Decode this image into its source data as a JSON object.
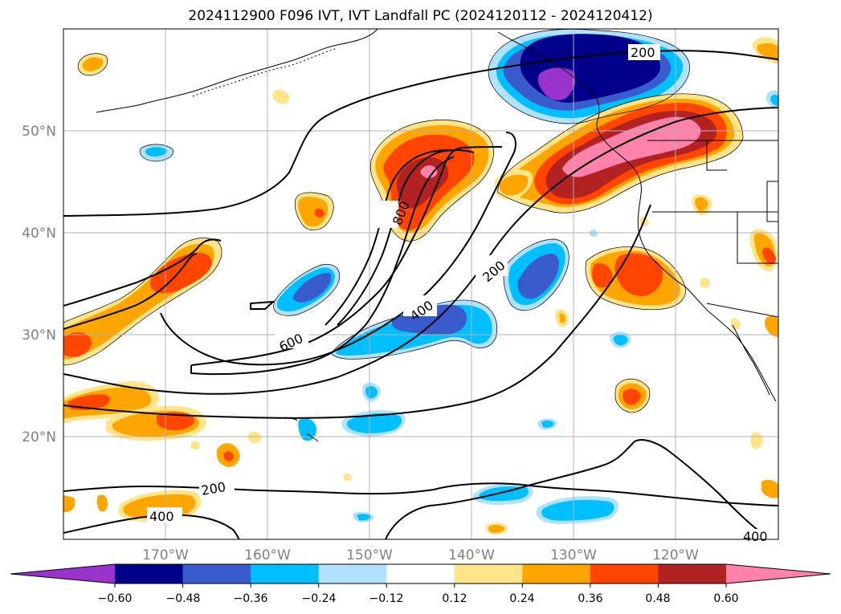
{
  "title": "2024112900 F096 IVT, IVT Landfall PC (2024120112 - 2024120412)",
  "latitude_labels": [
    "50°N",
    "40°N",
    "30°N",
    "20°N"
  ],
  "longitude_labels": [
    "170°W",
    "160°W",
    "150°W",
    "140°W",
    "130°W",
    "120°W"
  ],
  "contour_labels": [
    "200",
    "800",
    "200",
    "400",
    "600",
    "200",
    "400",
    "400"
  ],
  "colorbar": {
    "colors": [
      "#9933cc",
      "#00008b",
      "#3a5bcc",
      "#00bfff",
      "#b0e2ff",
      "#ffffff",
      "#ffe48a",
      "#ffa500",
      "#ff4500",
      "#b22222",
      "#ff82ab"
    ],
    "tick_labels": [
      "−0.60",
      "−0.48",
      "−0.36",
      "−0.24",
      "−0.12",
      "0.12",
      "0.24",
      "0.36",
      "0.48",
      "0.60"
    ]
  }
}
